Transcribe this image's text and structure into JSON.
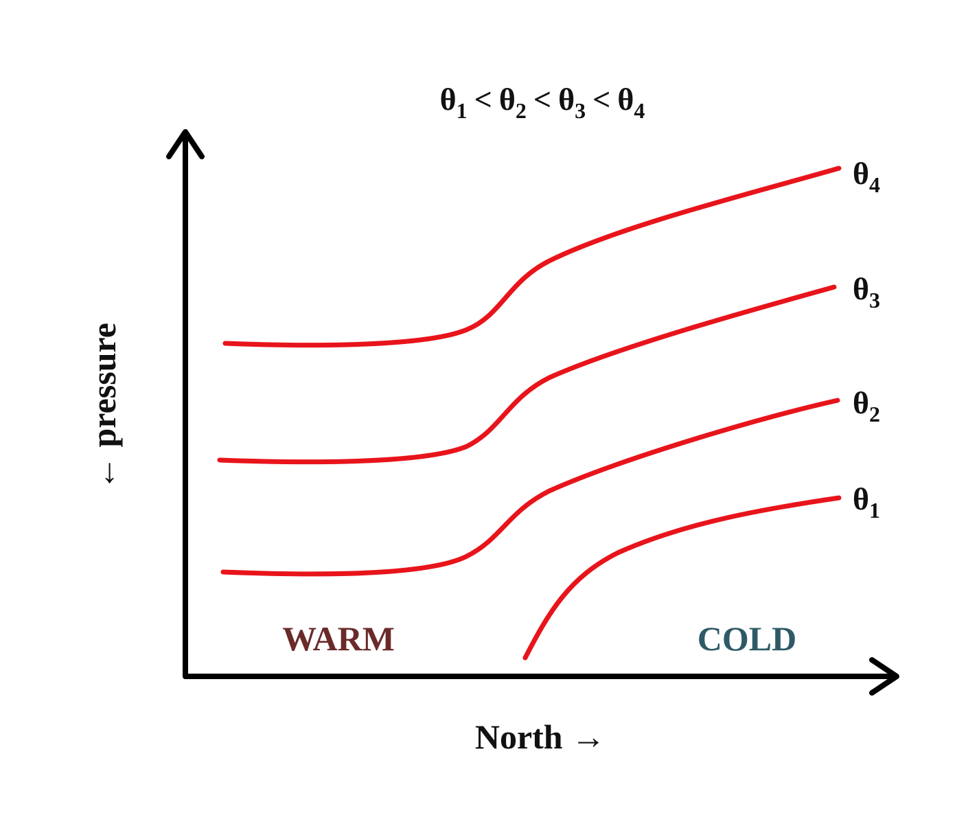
{
  "title": {
    "terms": [
      {
        "base": "θ",
        "sub": "1"
      },
      {
        "base": "θ",
        "sub": "2"
      },
      {
        "base": "θ",
        "sub": "3"
      },
      {
        "base": "θ",
        "sub": "4"
      }
    ],
    "separator": "<"
  },
  "curves": [
    {
      "label": {
        "base": "θ",
        "sub": "4"
      }
    },
    {
      "label": {
        "base": "θ",
        "sub": "3"
      }
    },
    {
      "label": {
        "base": "θ",
        "sub": "2"
      }
    },
    {
      "label": {
        "base": "θ",
        "sub": "1"
      }
    }
  ],
  "regions": {
    "warm": "WARM",
    "cold": "COLD"
  },
  "axes": {
    "x": "North →",
    "y": "← pressure"
  }
}
